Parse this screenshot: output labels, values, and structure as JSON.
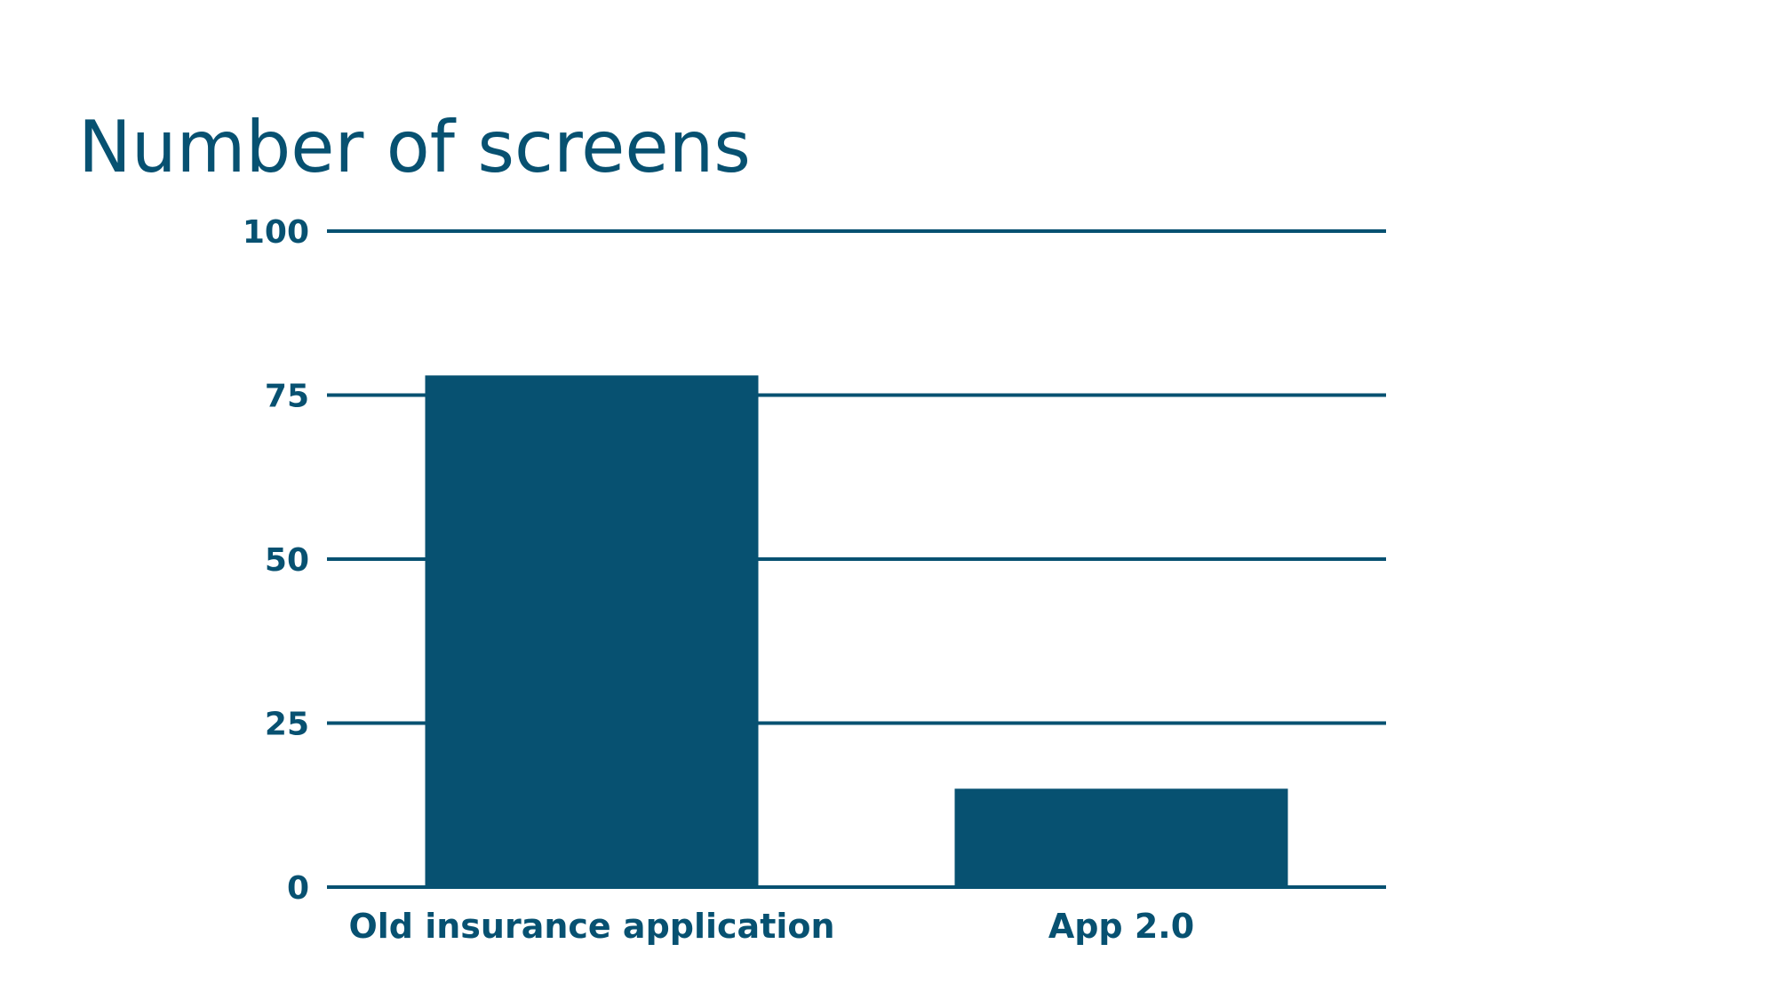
{
  "chart_data": {
    "type": "bar",
    "title": "Number of screens",
    "xlabel": "",
    "ylabel": "",
    "categories": [
      "Old insurance application",
      "App 2.0"
    ],
    "values": [
      78,
      15
    ],
    "ylim": [
      0,
      100
    ],
    "yticks": [
      "0",
      "25",
      "50",
      "75",
      "100"
    ],
    "grid": true,
    "legend": "none"
  },
  "colors": {
    "bar": "#075171",
    "text": "#075171",
    "grid": "#075171"
  }
}
